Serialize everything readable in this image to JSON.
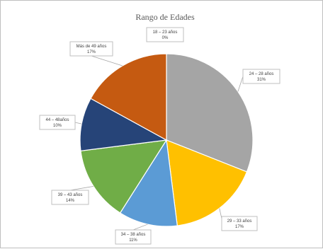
{
  "chart_data": {
    "type": "pie",
    "title": "Rango de Edades",
    "legend": "none",
    "categories": [
      "18 – 23 años",
      "24 – 28 años",
      "29 – 33 años",
      "34 – 38 años",
      "39 – 43 años",
      "44 – 48años",
      "Más de 49 años"
    ],
    "values": [
      0,
      31,
      17,
      11,
      14,
      10,
      17
    ],
    "data_labels": [
      {
        "category": "18 – 23 años",
        "value": "0%"
      },
      {
        "category": "24 – 28 años",
        "value": "31%"
      },
      {
        "category": "29 – 33 años",
        "value": "17%"
      },
      {
        "category": "34 – 38 años",
        "value": "11%"
      },
      {
        "category": "39 – 43 años",
        "value": "14%"
      },
      {
        "category": "44 – 48años",
        "value": "10%"
      },
      {
        "category": "Más de 49 años",
        "value": "17%"
      }
    ],
    "colors": [
      "#5b9bd5",
      "#a5a5a5",
      "#ffc000",
      "#5b9bd5",
      "#70ad47",
      "#264478",
      "#c55a11"
    ]
  }
}
